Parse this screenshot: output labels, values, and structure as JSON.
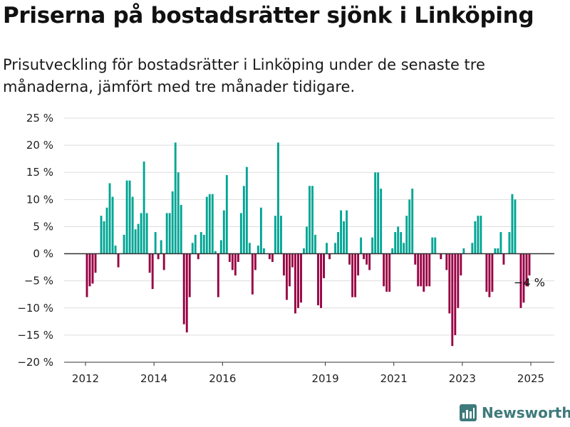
{
  "header": {
    "title": "Priserna på bostadsrätter sjönk i Linköping",
    "subtitle": "Prisutveckling för bostadsrätter i Linköping under de senaste tre månaderna, jämfört med tre månader tidigare."
  },
  "brand": {
    "name": "Newsworthy"
  },
  "colors": {
    "positive": "#00a594",
    "negative": "#980043",
    "zero_line": "#333333",
    "grid": "#dddddd"
  },
  "chart_data": {
    "type": "bar",
    "unit": "%",
    "title": "Priserna på bostadsrätter sjönk i Linköping",
    "ylim": [
      -20,
      25
    ],
    "yticks": [
      -20,
      -15,
      -10,
      -5,
      0,
      5,
      10,
      15,
      20,
      25
    ],
    "ytick_labels": [
      "−20 %",
      "−15 %",
      "−10 %",
      "−5 %",
      "0 %",
      "5 %",
      "10 %",
      "15 %",
      "20 %",
      "25 %"
    ],
    "xtick_labels": [
      "2012",
      "2014",
      "2016",
      "2019",
      "2021",
      "2023",
      "2025"
    ],
    "grid": "horizontal",
    "x_start": "2012-01",
    "x_end": "2025-03",
    "values": [
      -8,
      -6,
      -5.5,
      -3.5,
      0,
      7,
      6,
      8.5,
      13,
      10.5,
      1.5,
      -2.5,
      0,
      3.5,
      13.5,
      13.5,
      10.5,
      4.5,
      5.5,
      7.5,
      17,
      7.5,
      -3.5,
      -6.5,
      4,
      -1,
      2.5,
      -3,
      7.5,
      7.5,
      11.5,
      20.5,
      15,
      9,
      -13,
      -14.5,
      -8,
      2,
      3.5,
      -1,
      4,
      3.5,
      10.5,
      11,
      11,
      0.5,
      -8,
      2.5,
      8,
      14.5,
      -1.5,
      -3,
      -4,
      -1.5,
      7.5,
      12.5,
      16,
      2,
      -7.5,
      -3,
      1.5,
      8.5,
      1,
      0,
      -1,
      -1.5,
      7,
      20.5,
      7,
      -4,
      -8.5,
      -6,
      -2.5,
      -11,
      -10,
      -9,
      1,
      5,
      12.5,
      12.5,
      3.5,
      -9.5,
      -10,
      -4.5,
      2,
      -1,
      0,
      2,
      4,
      8,
      6,
      8,
      -2,
      -8,
      -8,
      -4,
      3,
      -1,
      -2,
      -3,
      3,
      15,
      15,
      12,
      -6,
      -7,
      -7,
      1,
      4,
      5,
      4,
      2,
      7,
      10,
      12,
      -2,
      -6,
      -6,
      -7,
      -6,
      -6,
      3,
      3,
      0,
      -1,
      0,
      -3,
      -11,
      -17,
      -15,
      -10,
      -4,
      1,
      0,
      0,
      2,
      6,
      7,
      7,
      0,
      -7,
      -8,
      -7,
      1,
      1,
      4,
      -2,
      0,
      4,
      11,
      10,
      0,
      -10,
      -9,
      -6,
      -4
    ],
    "annotations": [
      {
        "text": "−4 %"
      }
    ]
  }
}
